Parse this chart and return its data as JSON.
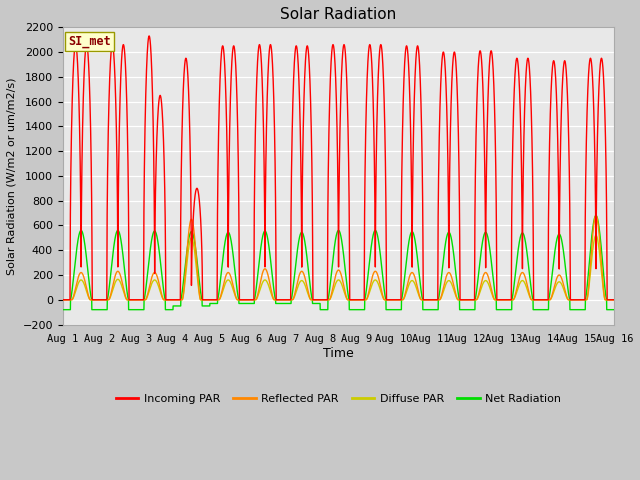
{
  "title": "Solar Radiation",
  "ylabel": "Solar Radiation (W/m2 or um/m2/s)",
  "xlabel": "Time",
  "ylim": [
    -200,
    2200
  ],
  "yticks": [
    -200,
    0,
    200,
    400,
    600,
    800,
    1000,
    1200,
    1400,
    1600,
    1800,
    2000,
    2200
  ],
  "num_days": 15,
  "tick_labels": [
    "Aug 1",
    "Aug 2",
    "Aug 3",
    "Aug 4",
    "Aug 5",
    "Aug 6",
    "Aug 7",
    "Aug 8",
    "Aug 9",
    "Aug 10",
    "Aug 11",
    "Aug 12",
    "Aug 13",
    "Aug 14",
    "Aug 15",
    "Aug 16"
  ],
  "colors": {
    "incoming": "#ff0000",
    "reflected": "#ff8800",
    "diffuse": "#cccc00",
    "net": "#00dd00",
    "background": "#e8e8e8",
    "figure_bg": "#c8c8c8"
  },
  "station_label": "SI_met",
  "legend": [
    "Incoming PAR",
    "Reflected PAR",
    "Diffuse PAR",
    "Net Radiation"
  ],
  "line_width": 1.0,
  "day_peaks": {
    "incoming_am": [
      2060,
      2060,
      2130,
      1950,
      2050,
      2060,
      2050,
      2060,
      2060,
      2050,
      2000,
      2010,
      1950,
      1930,
      1950
    ],
    "incoming_pm": [
      2060,
      2060,
      1650,
      900,
      2050,
      2060,
      2050,
      2060,
      2060,
      2050,
      2000,
      2010,
      1950,
      1930,
      1950
    ],
    "reflected": [
      220,
      230,
      220,
      650,
      220,
      250,
      230,
      240,
      230,
      220,
      220,
      220,
      220,
      200,
      680
    ],
    "diffuse": [
      160,
      165,
      160,
      500,
      160,
      160,
      155,
      160,
      160,
      155,
      155,
      155,
      155,
      145,
      520
    ],
    "net": [
      560,
      560,
      555,
      550,
      545,
      555,
      545,
      560,
      560,
      550,
      545,
      545,
      540,
      530,
      680
    ],
    "net_night": [
      -80,
      -80,
      -80,
      -50,
      -30,
      -30,
      -30,
      -80,
      -80,
      -80,
      -80,
      -80,
      -80,
      -80,
      -80
    ]
  }
}
